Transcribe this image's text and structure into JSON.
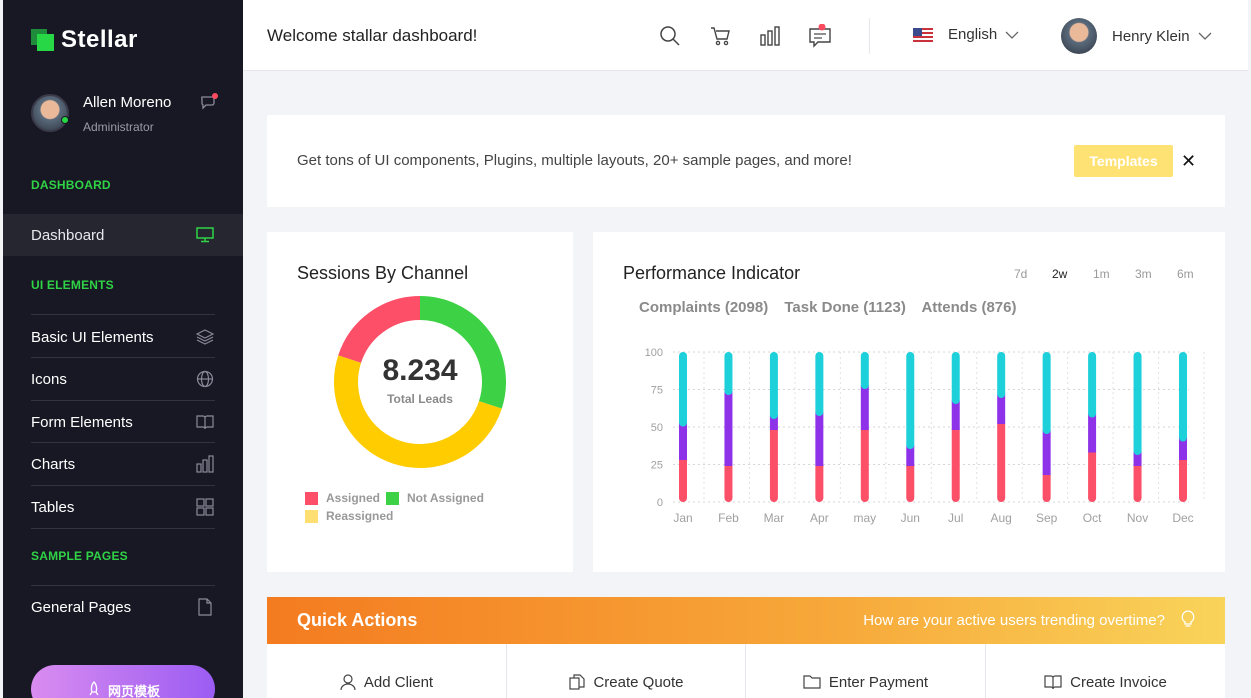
{
  "brand": {
    "name": "Stellar"
  },
  "profile": {
    "name": "Allen Moreno",
    "role": "Administrator"
  },
  "sidebar": {
    "sections": {
      "dashboard": "DASHBOARD",
      "ui": "UI ELEMENTS",
      "sample": "SAMPLE PAGES"
    },
    "items": [
      {
        "label": "Dashboard",
        "icon": "monitor-icon"
      },
      {
        "label": "Basic UI Elements",
        "icon": "layers-icon"
      },
      {
        "label": "Icons",
        "icon": "globe-icon"
      },
      {
        "label": "Form Elements",
        "icon": "book-icon"
      },
      {
        "label": "Charts",
        "icon": "bar-chart-icon"
      },
      {
        "label": "Tables",
        "icon": "grid-icon"
      },
      {
        "label": "General Pages",
        "icon": "file-icon"
      }
    ],
    "promo": "网页模板"
  },
  "header": {
    "welcome": "Welcome stallar dashboard!",
    "language": "English",
    "user": "Henry Klein"
  },
  "banner": {
    "text": "Get tons of UI components, Plugins, multiple layouts, 20+ sample pages, and more!",
    "button": "Templates",
    "close": "✕"
  },
  "sessions": {
    "title": "Sessions By Channel",
    "total": "8.234",
    "total_label": "Total Leads",
    "legend": [
      {
        "label": "Assigned",
        "color": "#fd5068"
      },
      {
        "label": "Not Assigned",
        "color": "#3dd145"
      },
      {
        "label": "Reassigned",
        "color": "#ffde72"
      }
    ]
  },
  "performance": {
    "title": "Performance Indicator",
    "periods": [
      "7d",
      "2w",
      "1m",
      "3m",
      "6m"
    ],
    "active_period": "2w",
    "stats": [
      "Complaints (2098)",
      "Task Done (1123)",
      "Attends (876)"
    ]
  },
  "quick_actions": {
    "title": "Quick Actions",
    "question": "How are your active users trending overtime?",
    "actions": [
      {
        "label": "Add Client",
        "icon": "user-icon"
      },
      {
        "label": "Create Quote",
        "icon": "copy-icon"
      },
      {
        "label": "Enter Payment",
        "icon": "folder-icon"
      },
      {
        "label": "Create Invoice",
        "icon": "book-icon"
      }
    ]
  },
  "chart_data": [
    {
      "type": "pie",
      "title": "Sessions By Channel",
      "categories": [
        "Assigned",
        "Not Assigned",
        "Reassigned"
      ],
      "values": [
        20,
        30,
        50
      ],
      "colors": [
        "#fd5068",
        "#3dd145",
        "#ffcc00"
      ]
    },
    {
      "type": "bar",
      "title": "Performance Indicator",
      "categories": [
        "Jan",
        "Feb",
        "Mar",
        "Apr",
        "may",
        "Jun",
        "Jul",
        "Aug",
        "Sep",
        "Oct",
        "Nov",
        "Dec"
      ],
      "ylim": [
        0,
        100
      ],
      "yticks": [
        100,
        75,
        50,
        25,
        0
      ],
      "stacked": true,
      "series": [
        {
          "name": "Complaints",
          "color": "#fc5068",
          "values": [
            28,
            24,
            48,
            24,
            48,
            24,
            48,
            52,
            18,
            33,
            24,
            28
          ]
        },
        {
          "name": "Task Done",
          "color": "#8e32e9",
          "values": [
            25,
            50,
            10,
            36,
            30,
            14,
            20,
            20,
            30,
            26,
            10,
            15
          ]
        },
        {
          "name": "Attends",
          "color": "#1ed0da",
          "values": [
            47,
            26,
            42,
            40,
            22,
            62,
            32,
            28,
            52,
            41,
            66,
            57
          ]
        }
      ]
    }
  ]
}
